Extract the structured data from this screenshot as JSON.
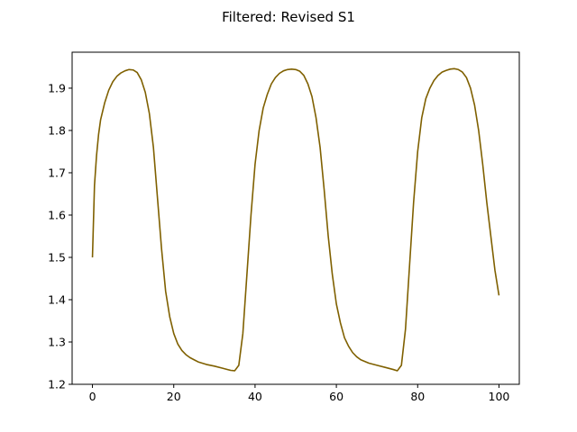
{
  "chart_data": {
    "type": "line",
    "title": "Filtered: Revised S1",
    "xlabel": "",
    "ylabel": "",
    "xlim": [
      -5,
      105
    ],
    "ylim": [
      1.2,
      1.985
    ],
    "x_ticks": [
      0,
      20,
      40,
      60,
      80,
      100
    ],
    "x_tick_labels": [
      "0",
      "20",
      "40",
      "60",
      "80",
      "100"
    ],
    "y_ticks": [
      1.2,
      1.3,
      1.4,
      1.5,
      1.6,
      1.7,
      1.8,
      1.9
    ],
    "y_tick_labels": [
      "1.2",
      "1.3",
      "1.4",
      "1.5",
      "1.6",
      "1.7",
      "1.8",
      "1.9"
    ],
    "grid": false,
    "line_color": "#7f6000",
    "series": [
      {
        "x": [
          0,
          0.5,
          1,
          1.5,
          2,
          3,
          4,
          5,
          6,
          7,
          8,
          9,
          10,
          11,
          12,
          13,
          14,
          15,
          16,
          17,
          18,
          19,
          20,
          21,
          22,
          23,
          24,
          25,
          26,
          28,
          30,
          32,
          34,
          35,
          36,
          37,
          38,
          39,
          40,
          41,
          42,
          43,
          44,
          45,
          46,
          47,
          48,
          49,
          50,
          51,
          52,
          53,
          54,
          55,
          56,
          57,
          58,
          59,
          60,
          61,
          62,
          63,
          64,
          65,
          66,
          68,
          70,
          72,
          74,
          75,
          76,
          77,
          78,
          79,
          80,
          81,
          82,
          83,
          84,
          85,
          86,
          87,
          88,
          89,
          90,
          91,
          92,
          93,
          94,
          95,
          96,
          97,
          98,
          99,
          100
        ],
        "y": [
          1.5,
          1.67,
          1.74,
          1.79,
          1.825,
          1.865,
          1.895,
          1.915,
          1.928,
          1.936,
          1.941,
          1.944,
          1.943,
          1.937,
          1.92,
          1.89,
          1.84,
          1.76,
          1.64,
          1.52,
          1.42,
          1.36,
          1.32,
          1.295,
          1.28,
          1.27,
          1.263,
          1.258,
          1.253,
          1.247,
          1.243,
          1.238,
          1.233,
          1.232,
          1.245,
          1.32,
          1.46,
          1.6,
          1.72,
          1.8,
          1.853,
          1.885,
          1.91,
          1.925,
          1.935,
          1.941,
          1.944,
          1.945,
          1.944,
          1.94,
          1.93,
          1.91,
          1.88,
          1.83,
          1.76,
          1.66,
          1.55,
          1.46,
          1.39,
          1.345,
          1.31,
          1.29,
          1.275,
          1.265,
          1.258,
          1.25,
          1.245,
          1.24,
          1.235,
          1.232,
          1.245,
          1.33,
          1.48,
          1.63,
          1.75,
          1.83,
          1.875,
          1.9,
          1.918,
          1.93,
          1.938,
          1.942,
          1.945,
          1.946,
          1.944,
          1.938,
          1.925,
          1.9,
          1.86,
          1.8,
          1.72,
          1.63,
          1.55,
          1.47,
          1.41
        ]
      }
    ]
  }
}
